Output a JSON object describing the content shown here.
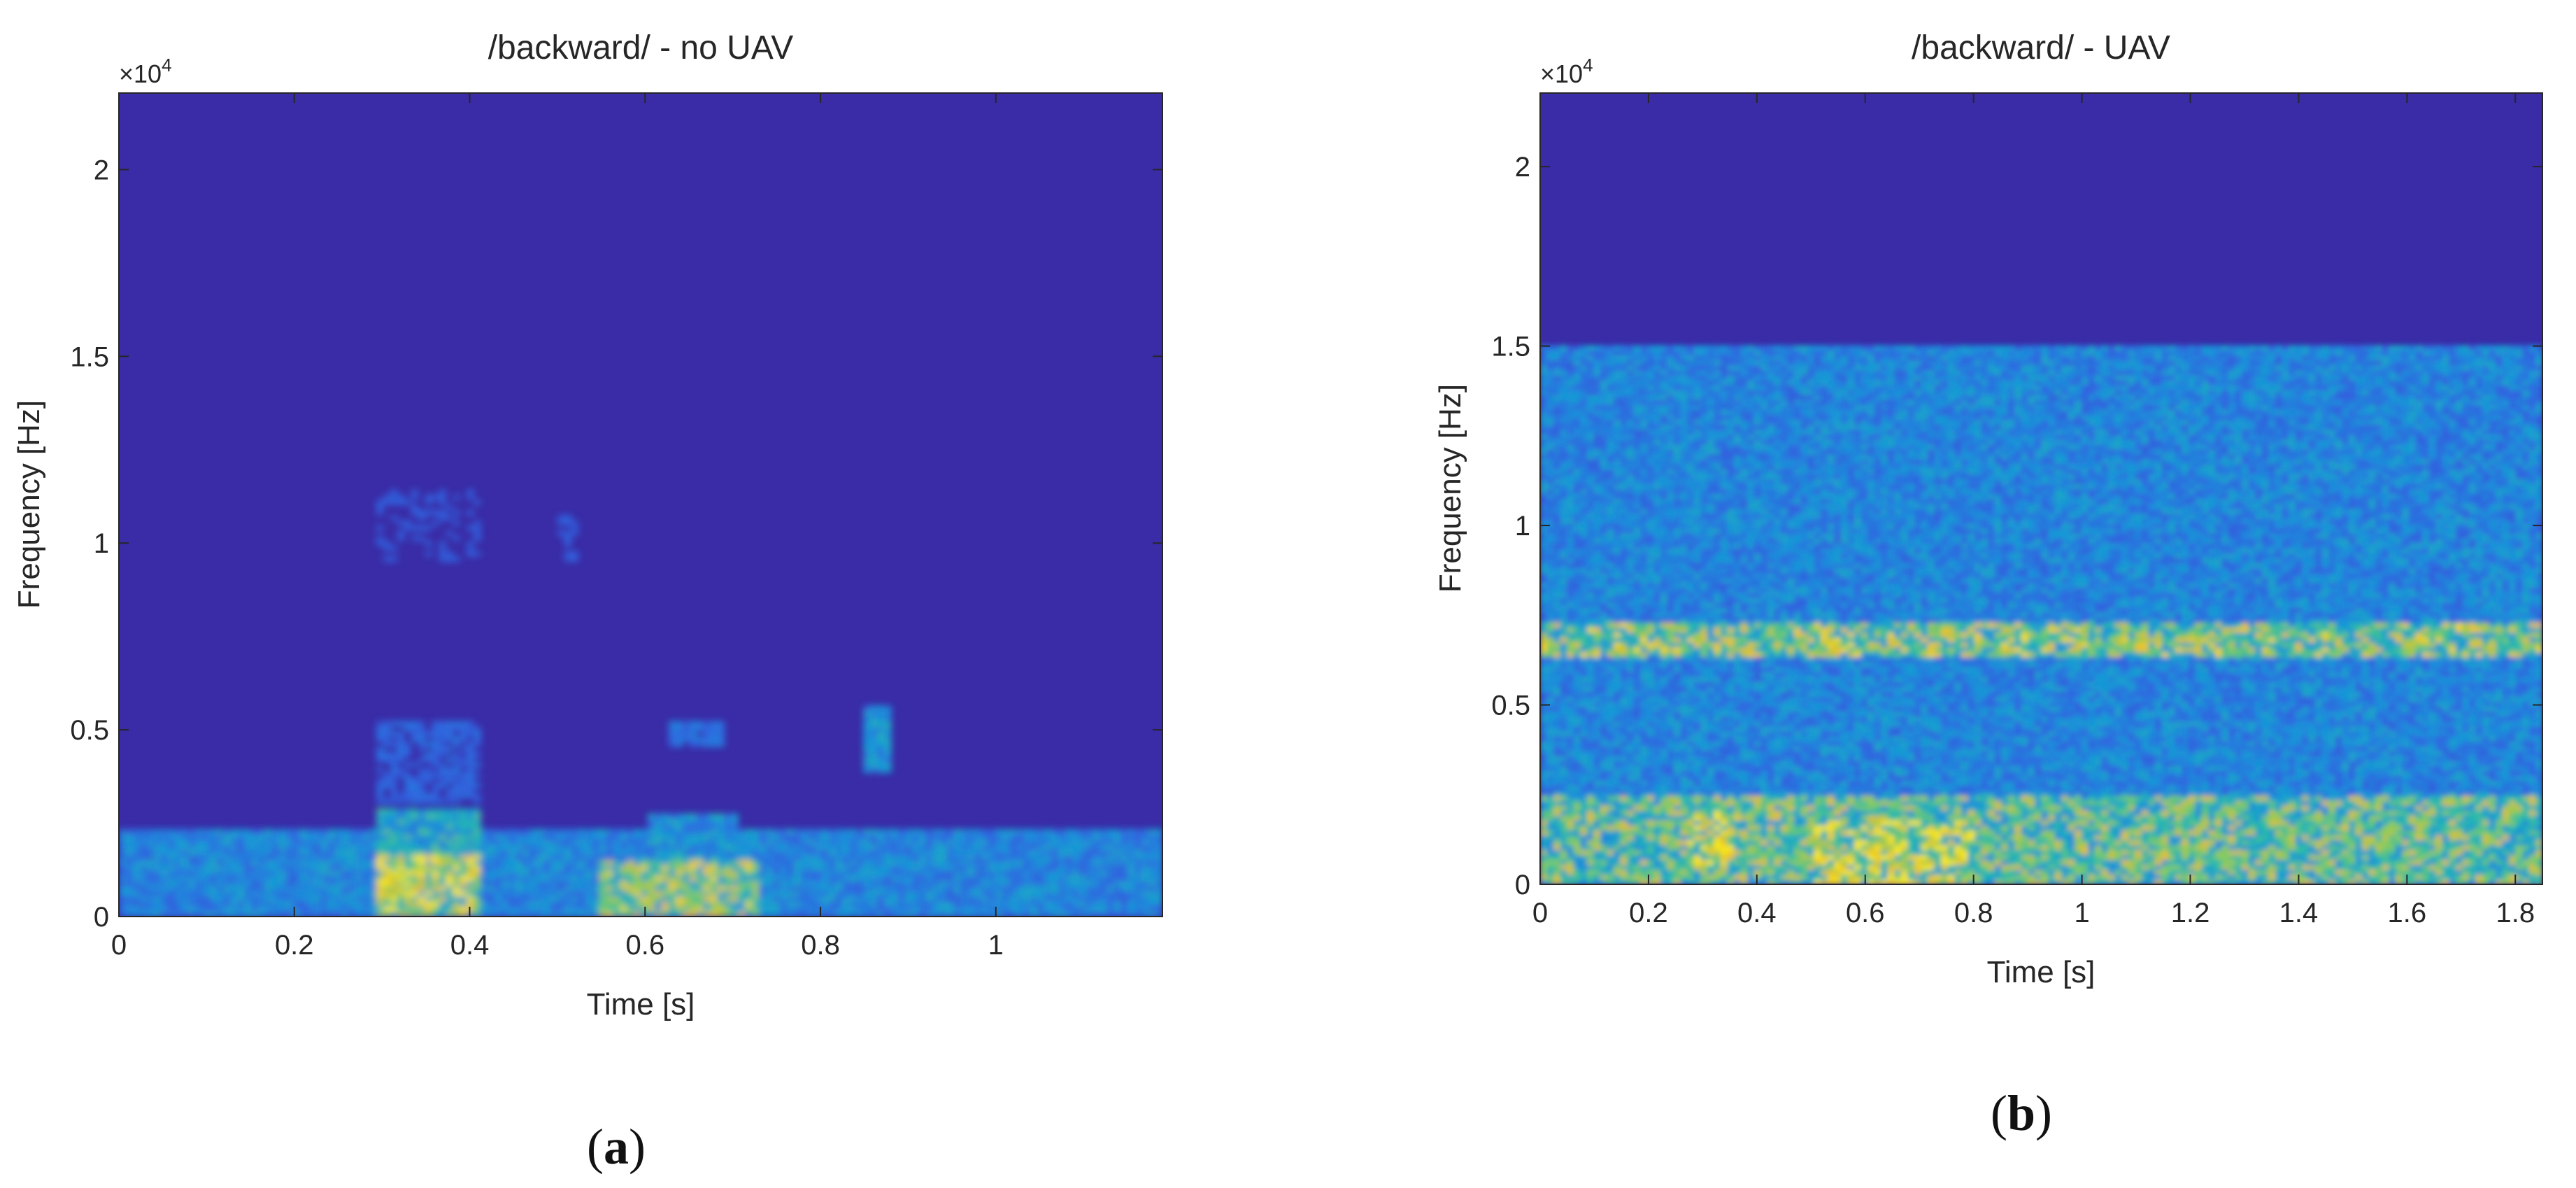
{
  "chart_data": [
    {
      "type": "heatmap",
      "title": "/backward/ - no UAV",
      "xlabel": "Time [s]",
      "ylabel": "Frequency [Hz]",
      "y_multiplier": "×10",
      "y_multiplier_exp": "4",
      "xlim": [
        0,
        1.19
      ],
      "ylim": [
        0,
        22050
      ],
      "x_ticks": [
        0,
        0.2,
        0.4,
        0.6,
        0.8,
        1
      ],
      "x_tick_labels": [
        "0",
        "0.2",
        "0.4",
        "0.6",
        "0.8",
        "1"
      ],
      "y_ticks": [
        0,
        5000,
        10000,
        15000,
        20000
      ],
      "y_tick_labels": [
        "0",
        "0.5",
        "1",
        "1.5",
        "2"
      ],
      "background_color": "#3a2ba6",
      "panel_label": "a",
      "energy_regions": [
        {
          "t0": 0,
          "t1": 1.19,
          "f0": 0,
          "f1": 2300,
          "level": 0.4
        },
        {
          "t0": 0.29,
          "t1": 0.41,
          "f0": 0,
          "f1": 1700,
          "level": 0.85
        },
        {
          "t0": 0.29,
          "t1": 0.41,
          "f0": 1700,
          "f1": 2900,
          "level": 0.55
        },
        {
          "t0": 0.29,
          "t1": 0.41,
          "f0": 3000,
          "f1": 5200,
          "level": 0.25
        },
        {
          "t0": 0.29,
          "t1": 0.41,
          "f0": 9500,
          "f1": 11500,
          "level": 0.18
        },
        {
          "t0": 0.55,
          "t1": 0.73,
          "f0": 0,
          "f1": 1500,
          "level": 0.75
        },
        {
          "t0": 0.6,
          "t1": 0.71,
          "f0": 1500,
          "f1": 2800,
          "level": 0.45
        },
        {
          "t0": 0.63,
          "t1": 0.69,
          "f0": 4500,
          "f1": 5300,
          "level": 0.3
        },
        {
          "t0": 0.85,
          "t1": 0.88,
          "f0": 3800,
          "f1": 5600,
          "level": 0.45
        },
        {
          "t0": 0.5,
          "t1": 0.52,
          "f0": 9500,
          "f1": 11000,
          "level": 0.2
        }
      ]
    },
    {
      "type": "heatmap",
      "title": "/backward/ - UAV",
      "xlabel": "Time [s]",
      "ylabel": "Frequency [Hz]",
      "y_multiplier": "×10",
      "y_multiplier_exp": "4",
      "xlim": [
        0,
        1.85
      ],
      "ylim": [
        0,
        22050
      ],
      "x_ticks": [
        0,
        0.2,
        0.4,
        0.6,
        0.8,
        1,
        1.2,
        1.4,
        1.6,
        1.8
      ],
      "x_tick_labels": [
        "0",
        "0.2",
        "0.4",
        "0.6",
        "0.8",
        "1",
        "1.2",
        "1.4",
        "1.6",
        "1.8"
      ],
      "y_ticks": [
        0,
        5000,
        10000,
        15000,
        20000
      ],
      "y_tick_labels": [
        "0",
        "0.5",
        "1",
        "1.5",
        "2"
      ],
      "background_color": "#3a2ba6",
      "panel_label": "b",
      "energy_regions": [
        {
          "t0": 0,
          "t1": 1.85,
          "f0": 0,
          "f1": 15000,
          "level": 0.4
        },
        {
          "t0": 0,
          "t1": 1.85,
          "f0": 6300,
          "f1": 7300,
          "level": 0.75
        },
        {
          "t0": 0,
          "t1": 1.85,
          "f0": 0,
          "f1": 2500,
          "level": 0.7
        },
        {
          "t0": 0.27,
          "t1": 0.37,
          "f0": 500,
          "f1": 2000,
          "level": 0.9
        },
        {
          "t0": 0.5,
          "t1": 0.8,
          "f0": 0,
          "f1": 1800,
          "level": 0.85
        }
      ]
    }
  ],
  "panel_labels": [
    "(a)",
    "(b)"
  ]
}
